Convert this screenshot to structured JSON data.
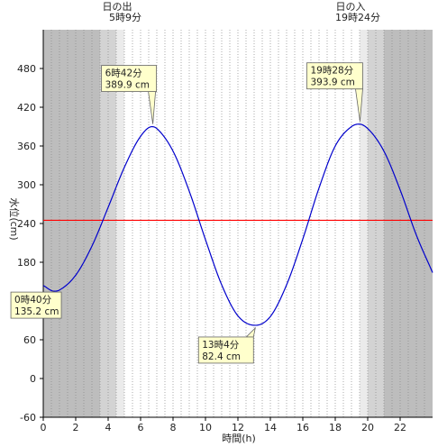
{
  "chart_data": {
    "type": "line",
    "xlabel": "時間(h)",
    "ylabel": "水位(cm)",
    "xlim": [
      0,
      24
    ],
    "ylim": [
      -60,
      540
    ],
    "x_ticks": [
      "0",
      "2",
      "4",
      "6",
      "8",
      "10",
      "12",
      "14",
      "16",
      "18",
      "20",
      "22"
    ],
    "y_ticks": [
      "-60",
      "0",
      "60",
      "120",
      "180",
      "240",
      "300",
      "360",
      "420",
      "480"
    ],
    "grid": "vertical dotted every 0.5 h",
    "reference_line": {
      "value": 245,
      "color": "#ff0000"
    },
    "sun": {
      "sunrise": {
        "title": "日の出",
        "time": "5時9分",
        "hour": 5.15
      },
      "sunset": {
        "title": "日の入",
        "time": "19時24分",
        "hour": 19.4
      }
    },
    "shading": [
      {
        "from": 0,
        "to": 3.5,
        "shade": "night",
        "color": "#bdbdbd"
      },
      {
        "from": 3.5,
        "to": 4.5,
        "shade": "twilight",
        "color": "#d3d3d3"
      },
      {
        "from": 4.5,
        "to": 5.0,
        "shade": "twilight",
        "color": "#ebebeb"
      },
      {
        "from": 19.5,
        "to": 20.0,
        "shade": "twilight",
        "color": "#ebebeb"
      },
      {
        "from": 20.0,
        "to": 21.0,
        "shade": "twilight",
        "color": "#d3d3d3"
      },
      {
        "from": 21.0,
        "to": 24.0,
        "shade": "night",
        "color": "#bdbdbd"
      }
    ],
    "series": [
      {
        "color": "#0000cc",
        "x": [
          0,
          0.67,
          1,
          2,
          3,
          4,
          5,
          6,
          6.7,
          7,
          8,
          9,
          10,
          11,
          12,
          13.07,
          14,
          15,
          16,
          17,
          18,
          19,
          19.47,
          20,
          21,
          22,
          23,
          24
        ],
        "y": [
          144,
          135.2,
          137,
          160,
          205,
          265,
          327,
          375,
          389.9,
          387,
          352,
          290,
          215,
          145,
          97,
          82.4,
          96,
          145,
          216,
          295,
          360,
          390,
          393.9,
          387,
          352,
          292,
          222,
          164
        ]
      }
    ],
    "annotations": [
      {
        "time": "0時40分",
        "value": "135.2 cm",
        "x": 0.67,
        "y": 135.2
      },
      {
        "time": "6時42分",
        "value": "389.9 cm",
        "x": 6.7,
        "y": 389.9
      },
      {
        "time": "13時4分",
        "value": "82.4 cm",
        "x": 13.07,
        "y": 82.4
      },
      {
        "time": "19時28分",
        "value": "393.9 cm",
        "x": 19.47,
        "y": 393.9
      }
    ],
    "colors": {
      "axis": "#000000",
      "grid": "#888888",
      "callout_bg": "#ffffcc",
      "callout_border": "#666666"
    }
  }
}
